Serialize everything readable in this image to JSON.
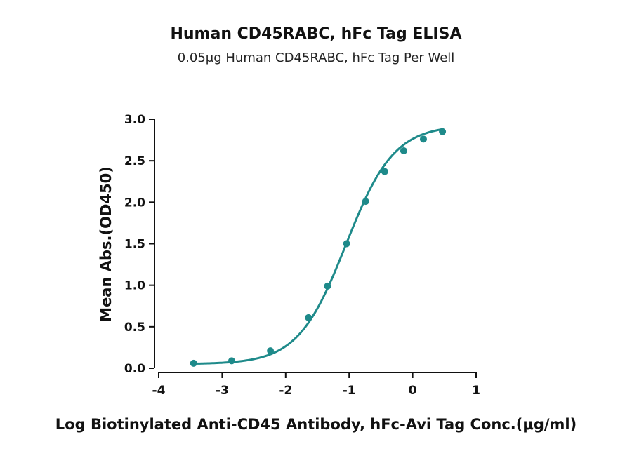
{
  "chart_data": {
    "type": "line",
    "title": "Human CD45RABC, hFc Tag ELISA",
    "subtitle": "0.05μg Human CD45RABC, hFc Tag Per Well",
    "xlabel": "Log Biotinylated Anti-CD45 Antibody, hFc-Avi Tag Conc.(μg/ml)",
    "ylabel": "Mean Abs.(OD450)",
    "xlim": [
      -4,
      1
    ],
    "ylim": [
      0,
      3
    ],
    "xticks": [
      -4,
      -3,
      -2,
      -1,
      0,
      1
    ],
    "yticks": [
      0,
      0.5,
      1,
      1.5,
      2,
      2.5,
      3
    ],
    "xtick_labels": [
      "-4",
      "-3",
      "-2",
      "-1",
      "0",
      "1"
    ],
    "ytick_labels": [
      "0.0",
      "0.5",
      "1.0",
      "1.5",
      "2.0",
      "2.5",
      "3.0"
    ],
    "grid": false,
    "color": "#1e8a8a",
    "series": [
      {
        "x": [
          -3.45,
          -2.85,
          -2.24,
          -1.64,
          -1.34,
          -1.04,
          -0.74,
          -0.44,
          -0.14,
          0.17,
          0.47
        ],
        "y": [
          0.06,
          0.09,
          0.21,
          0.61,
          0.99,
          1.5,
          2.01,
          2.37,
          2.62,
          2.76,
          2.85
        ]
      }
    ],
    "fit_curve": {
      "bottom": 0.05,
      "top": 2.93,
      "logEC50": -1.05,
      "hill": 1.15
    }
  }
}
